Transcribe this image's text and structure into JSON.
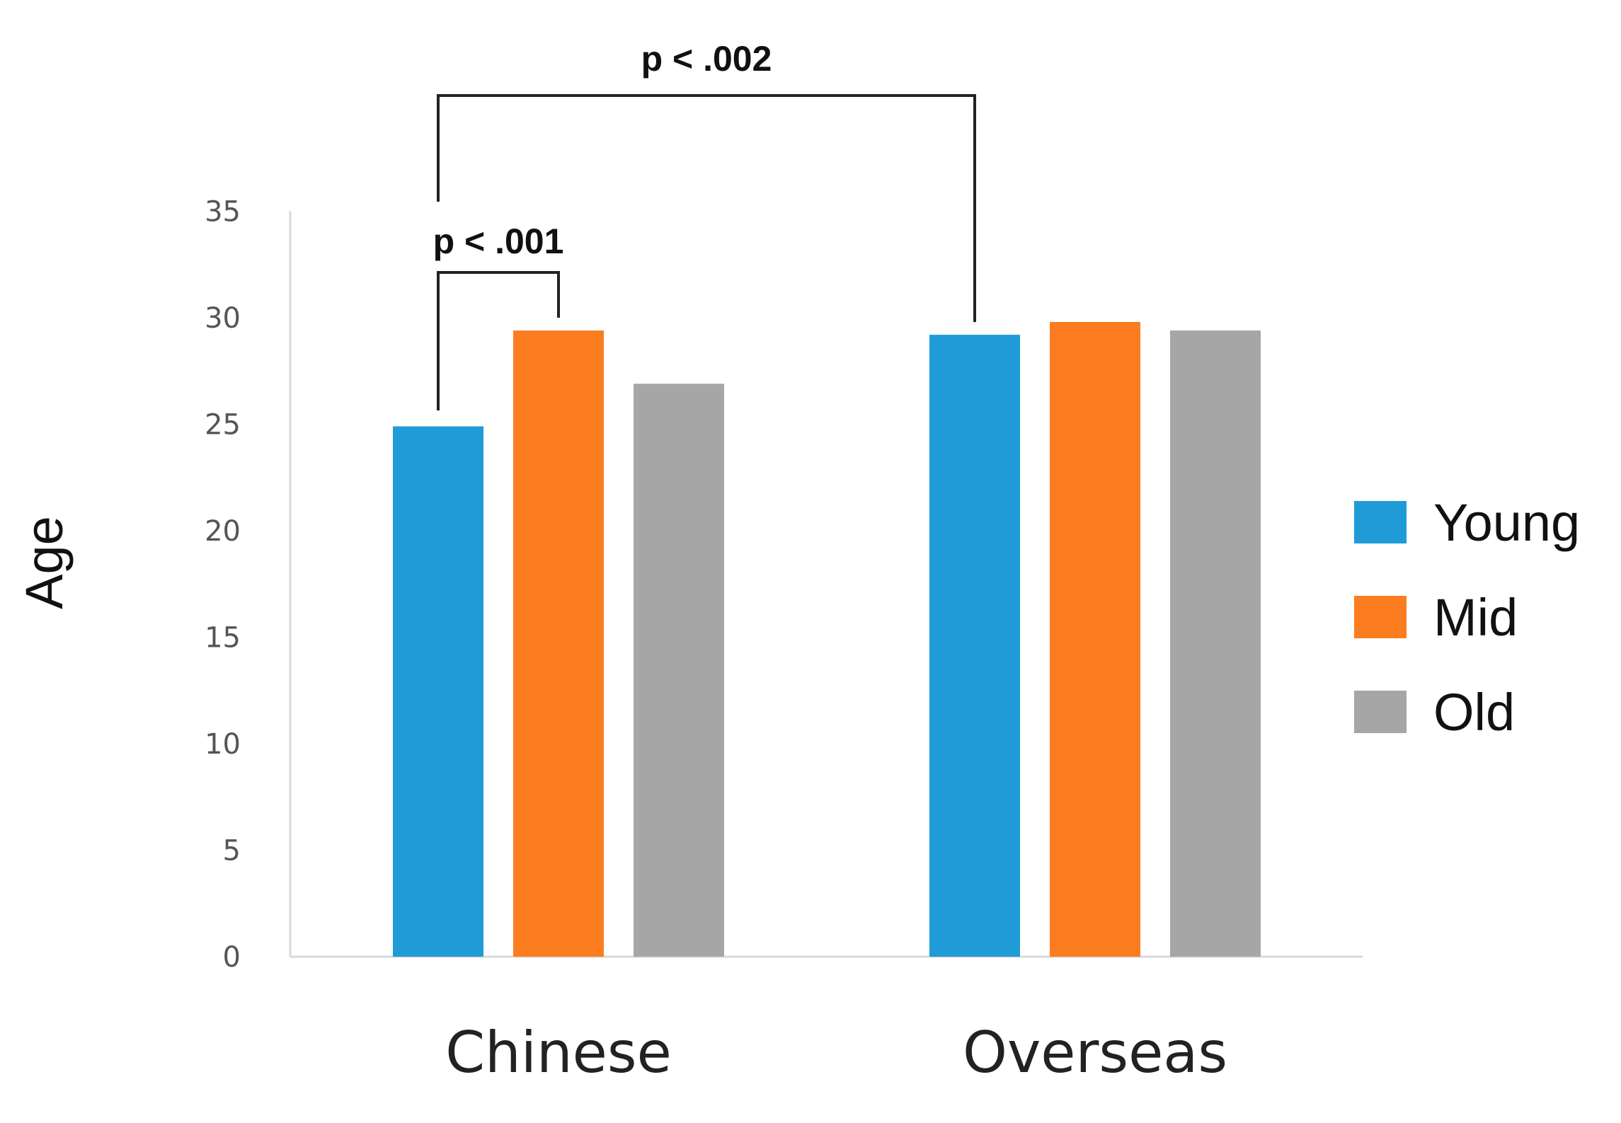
{
  "chart_data": {
    "type": "bar",
    "title": "",
    "xlabel": "",
    "ylabel": "Age",
    "categories": [
      "Chinese",
      "Overseas"
    ],
    "series": [
      {
        "name": "Young",
        "values": [
          24.9,
          29.2
        ]
      },
      {
        "name": "Mid",
        "values": [
          29.4,
          29.8
        ]
      },
      {
        "name": "Old",
        "values": [
          26.9,
          29.4
        ]
      }
    ],
    "ylim": [
      0,
      35
    ],
    "yticks": [
      "0",
      "5",
      "10",
      "15",
      "20",
      "25",
      "30",
      "35"
    ],
    "grid": false,
    "legend_position": "right",
    "colors": [
      "#1f9bd7",
      "#fb7d20",
      "#a6a6a6"
    ],
    "annotations": [
      {
        "text": "p < .001",
        "from": {
          "category": "Chinese",
          "series": "Young"
        },
        "to": {
          "category": "Chinese",
          "series": "Mid"
        }
      },
      {
        "text": "p < .002",
        "from": {
          "category": "Chinese",
          "series": "Young"
        },
        "to": {
          "category": "Overseas",
          "series": "Young"
        }
      }
    ]
  }
}
